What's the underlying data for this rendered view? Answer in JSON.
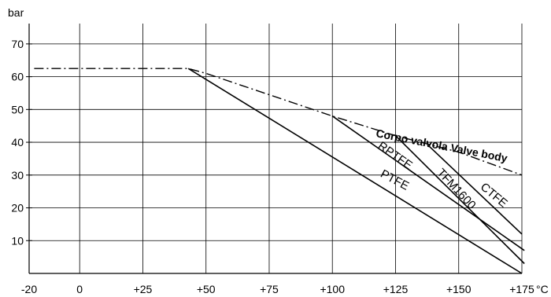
{
  "chart_data": {
    "type": "line",
    "title": "",
    "xlabel": "°C",
    "ylabel": "bar",
    "xlim": [
      -20,
      175
    ],
    "ylim": [
      0,
      75
    ],
    "x_ticks": [
      -20,
      0,
      25,
      50,
      75,
      100,
      125,
      150,
      175
    ],
    "x_tick_labels": [
      "-20",
      "0",
      "+25",
      "+50",
      "+75",
      "+100",
      "+125",
      "+150",
      "+175"
    ],
    "y_ticks": [
      10,
      20,
      30,
      40,
      50,
      60,
      70
    ],
    "y_tick_labels": [
      "10",
      "20",
      "30",
      "40",
      "50",
      "60",
      "70"
    ],
    "grid": true,
    "series": [
      {
        "name": "Corpo valvola Valve body",
        "style": "dashdot",
        "points": [
          [
            -18,
            62.5
          ],
          [
            43,
            62.5
          ],
          [
            50,
            61
          ],
          [
            100,
            48
          ],
          [
            125,
            42
          ],
          [
            150,
            37
          ],
          [
            175,
            30
          ]
        ]
      },
      {
        "name": "PTFE",
        "style": "solid",
        "points": [
          [
            43,
            62.5
          ],
          [
            175,
            0
          ]
        ]
      },
      {
        "name": "RPTFE",
        "style": "solid",
        "points": [
          [
            100,
            48
          ],
          [
            176,
            7
          ]
        ]
      },
      {
        "name": "TFM1600",
        "style": "solid",
        "points": [
          [
            125,
            42
          ],
          [
            176,
            3
          ]
        ]
      },
      {
        "name": "CTFE",
        "style": "solid",
        "points": [
          [
            138,
            39
          ],
          [
            175,
            12
          ]
        ]
      }
    ],
    "labels": [
      {
        "text": "Corpo valvola Valve body",
        "x": 143,
        "y": 37.8,
        "angle": 11,
        "bold": true
      },
      {
        "text": "RPTFE",
        "x": 124,
        "y": 35,
        "angle": 35
      },
      {
        "text": "PTFE",
        "x": 124,
        "y": 27.5,
        "angle": 28
      },
      {
        "text": "TFM1600",
        "x": 148,
        "y": 25,
        "angle": 47
      },
      {
        "text": "CTFE",
        "x": 163,
        "y": 23,
        "angle": 40
      }
    ]
  }
}
